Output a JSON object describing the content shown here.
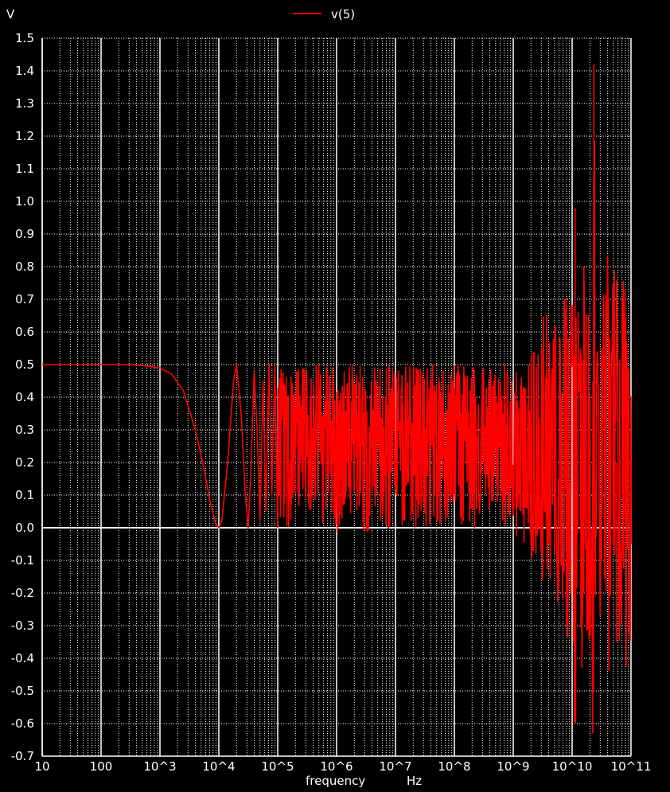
{
  "chart_data": {
    "type": "line",
    "title": "",
    "ylabel": "V",
    "xlabel": "frequency",
    "xunit": "Hz",
    "xscale": "log",
    "xlim_decades": [
      1,
      11
    ],
    "ylim": [
      -0.7,
      1.5
    ],
    "ytick_step": 0.1,
    "xtick_labels": [
      "10",
      "100",
      "10^3",
      "10^4",
      "10^5",
      "10^6",
      "10^7",
      "10^8",
      "10^9",
      "10^10",
      "10^11"
    ],
    "ytick_labels": [
      "-0.7",
      "-0.6",
      "-0.5",
      "-0.4",
      "-0.3",
      "-0.2",
      "-0.1",
      "0.0",
      "0.1",
      "0.2",
      "0.3",
      "0.4",
      "0.5",
      "0.6",
      "0.7",
      "0.8",
      "0.9",
      "1.0",
      "1.1",
      "1.2",
      "1.3",
      "1.4",
      "1.5"
    ],
    "legend": "top-center",
    "series": [
      {
        "name": "v(5)",
        "color": "#ff0000",
        "description": "0.5 V flat to ~1.5 kHz, roll-off to 0 at 10 kHz, then rapid oscillation 0..0.5 V through 1 GHz, growing to -0.63..1.42 V near 10-20 GHz",
        "points": [
          [
            1.0,
            0.5
          ],
          [
            2.0,
            0.5
          ],
          [
            2.5,
            0.5
          ],
          [
            2.8,
            0.495
          ],
          [
            3.0,
            0.49
          ],
          [
            3.2,
            0.47
          ],
          [
            3.4,
            0.42
          ],
          [
            3.6,
            0.3
          ],
          [
            3.75,
            0.18
          ],
          [
            3.85,
            0.08
          ],
          [
            3.95,
            0.01
          ],
          [
            4.0,
            0.0
          ],
          [
            4.05,
            0.02
          ],
          [
            4.15,
            0.2
          ],
          [
            4.25,
            0.45
          ],
          [
            4.3,
            0.5
          ],
          [
            4.38,
            0.35
          ],
          [
            4.45,
            0.1
          ],
          [
            4.5,
            0.0
          ],
          [
            4.55,
            0.2
          ],
          [
            4.6,
            0.48
          ],
          [
            4.65,
            0.3
          ],
          [
            4.7,
            0.02
          ],
          [
            4.75,
            0.45
          ],
          [
            4.8,
            0.05
          ],
          [
            4.85,
            0.5
          ],
          [
            4.9,
            0.1
          ],
          [
            4.95,
            0.5
          ],
          [
            5.0,
            0.0
          ],
          [
            9.0,
            0.02
          ],
          [
            9.3,
            -0.05
          ],
          [
            9.6,
            -0.05
          ],
          [
            9.9,
            -0.3
          ],
          [
            10.05,
            -0.6
          ],
          [
            10.2,
            -0.2
          ],
          [
            10.35,
            -0.63
          ],
          [
            10.5,
            -0.1
          ],
          [
            10.75,
            -0.35
          ],
          [
            11.0,
            -0.05
          ]
        ],
        "peaks": [
          [
            9.6,
            0.48
          ],
          [
            9.9,
            0.7
          ],
          [
            10.05,
            0.98
          ],
          [
            10.2,
            0.8
          ],
          [
            10.37,
            1.42
          ],
          [
            10.5,
            0.55
          ],
          [
            10.85,
            0.7
          ]
        ]
      }
    ]
  }
}
